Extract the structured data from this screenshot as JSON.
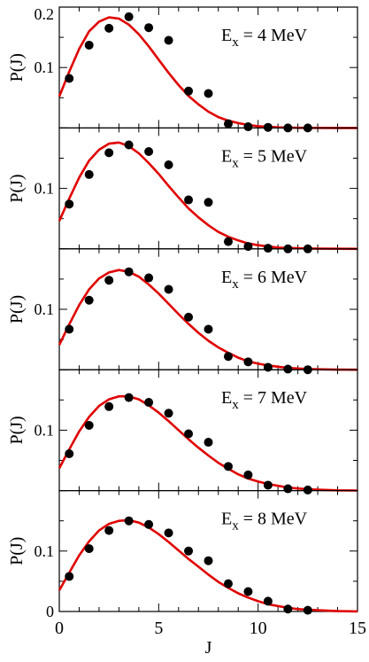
{
  "chart_data": [
    {
      "type": "scatter",
      "ylabel": "P(J)",
      "xlabel": "",
      "xlim": [
        0,
        15
      ],
      "ylim": [
        0,
        0.2
      ],
      "x_ticks": [
        0,
        5,
        10,
        15
      ],
      "y_ticks": [
        0.1,
        0.2
      ],
      "y_tick_labels": [
        "0.1",
        "0.2"
      ],
      "annotation": {
        "prefix": "E",
        "sub": "x",
        "suffix": " = 4 MeV"
      },
      "series": [
        {
          "style": "points",
          "x": [
            0.5,
            1.5,
            2.5,
            3.5,
            4.5,
            5.5,
            6.5,
            7.5,
            8.5,
            9.5,
            10.5,
            11.5,
            12.5
          ],
          "y": [
            0.082,
            0.137,
            0.165,
            0.184,
            0.166,
            0.145,
            0.061,
            0.057,
            0.007,
            0.002,
            0.001,
            0.0,
            0.0
          ]
        },
        {
          "style": "curve",
          "x": [
            0,
            0.5,
            1,
            1.5,
            2,
            2.5,
            3,
            3.5,
            4,
            4.5,
            5,
            5.5,
            6,
            6.5,
            7,
            7.5,
            8,
            8.5,
            9,
            9.5,
            10,
            10.5,
            11,
            11.5,
            12,
            12.5,
            13,
            14,
            15
          ],
          "y": [
            0.052,
            0.093,
            0.131,
            0.16,
            0.176,
            0.183,
            0.181,
            0.171,
            0.155,
            0.135,
            0.113,
            0.091,
            0.071,
            0.053,
            0.039,
            0.027,
            0.018,
            0.012,
            0.008,
            0.005,
            0.003,
            0.002,
            0.001,
            0.0006,
            0.0003,
            0.0002,
            0.0001,
            0.0,
            0.0
          ]
        }
      ]
    },
    {
      "type": "scatter",
      "ylabel": "P(J)",
      "xlabel": "",
      "xlim": [
        0,
        15
      ],
      "ylim": [
        0,
        0.2
      ],
      "x_ticks": [
        0,
        5,
        10,
        15
      ],
      "y_ticks": [
        0.1
      ],
      "y_tick_labels": [
        "0.1"
      ],
      "annotation": {
        "prefix": "E",
        "sub": "x",
        "suffix": " = 5 MeV"
      },
      "series": [
        {
          "style": "points",
          "x": [
            0.5,
            1.5,
            2.5,
            3.5,
            4.5,
            5.5,
            6.5,
            7.5,
            8.5,
            9.5,
            10.5,
            11.5,
            12.5
          ],
          "y": [
            0.074,
            0.123,
            0.159,
            0.172,
            0.161,
            0.139,
            0.081,
            0.077,
            0.012,
            0.004,
            0.001,
            0.0,
            0.0
          ]
        },
        {
          "style": "curve",
          "x": [
            0,
            0.5,
            1,
            1.5,
            2,
            2.5,
            3,
            3.5,
            4,
            4.5,
            5,
            5.5,
            6,
            6.5,
            7,
            7.5,
            8,
            8.5,
            9,
            9.5,
            10,
            10.5,
            11,
            11.5,
            12,
            12.5,
            13,
            14,
            15
          ],
          "y": [
            0.046,
            0.083,
            0.118,
            0.146,
            0.164,
            0.174,
            0.176,
            0.17,
            0.158,
            0.142,
            0.124,
            0.104,
            0.085,
            0.067,
            0.052,
            0.039,
            0.028,
            0.02,
            0.014,
            0.009,
            0.006,
            0.004,
            0.002,
            0.0015,
            0.001,
            0.0006,
            0.0003,
            0.0001,
            0.0
          ]
        }
      ]
    },
    {
      "type": "scatter",
      "ylabel": "P(J)",
      "xlabel": "",
      "xlim": [
        0,
        15
      ],
      "ylim": [
        0,
        0.2
      ],
      "x_ticks": [
        0,
        5,
        10,
        15
      ],
      "y_ticks": [
        0.1
      ],
      "y_tick_labels": [
        "0.1"
      ],
      "annotation": {
        "prefix": "E",
        "sub": "x",
        "suffix": " = 6 MeV"
      },
      "series": [
        {
          "style": "points",
          "x": [
            0.5,
            1.5,
            2.5,
            3.5,
            4.5,
            5.5,
            6.5,
            7.5,
            8.5,
            9.5,
            10.5,
            11.5,
            12.5
          ],
          "y": [
            0.067,
            0.115,
            0.148,
            0.162,
            0.152,
            0.133,
            0.087,
            0.067,
            0.022,
            0.013,
            0.004,
            0.001,
            0.0
          ]
        },
        {
          "style": "curve",
          "x": [
            0,
            0.5,
            1,
            1.5,
            2,
            2.5,
            3,
            3.5,
            4,
            4.5,
            5,
            5.5,
            6,
            6.5,
            7,
            7.5,
            8,
            8.5,
            9,
            9.5,
            10,
            10.5,
            11,
            11.5,
            12,
            12.5,
            13,
            14,
            15
          ],
          "y": [
            0.041,
            0.075,
            0.107,
            0.133,
            0.151,
            0.161,
            0.165,
            0.162,
            0.154,
            0.141,
            0.126,
            0.109,
            0.092,
            0.076,
            0.061,
            0.048,
            0.037,
            0.028,
            0.02,
            0.014,
            0.01,
            0.007,
            0.005,
            0.003,
            0.002,
            0.0012,
            0.0007,
            0.0002,
            0.0
          ]
        }
      ]
    },
    {
      "type": "scatter",
      "ylabel": "P(J)",
      "xlabel": "",
      "xlim": [
        0,
        15
      ],
      "ylim": [
        0,
        0.2
      ],
      "x_ticks": [
        0,
        5,
        10,
        15
      ],
      "y_ticks": [
        0.1
      ],
      "y_tick_labels": [
        "0.1"
      ],
      "annotation": {
        "prefix": "E",
        "sub": "x",
        "suffix": " = 7 MeV"
      },
      "series": [
        {
          "style": "points",
          "x": [
            0.5,
            1.5,
            2.5,
            3.5,
            4.5,
            5.5,
            6.5,
            7.5,
            8.5,
            9.5,
            10.5,
            11.5,
            12.5
          ],
          "y": [
            0.061,
            0.108,
            0.139,
            0.154,
            0.146,
            0.128,
            0.094,
            0.08,
            0.04,
            0.026,
            0.009,
            0.003,
            0.001
          ]
        },
        {
          "style": "curve",
          "x": [
            0,
            0.5,
            1,
            1.5,
            2,
            2.5,
            3,
            3.5,
            4,
            4.5,
            5,
            5.5,
            6,
            6.5,
            7,
            7.5,
            8,
            8.5,
            9,
            9.5,
            10,
            10.5,
            11,
            11.5,
            12,
            12.5,
            13,
            14,
            15
          ],
          "y": [
            0.037,
            0.068,
            0.098,
            0.122,
            0.14,
            0.151,
            0.156,
            0.156,
            0.151,
            0.141,
            0.129,
            0.115,
            0.1,
            0.085,
            0.071,
            0.058,
            0.046,
            0.036,
            0.027,
            0.02,
            0.015,
            0.011,
            0.008,
            0.005,
            0.0035,
            0.0023,
            0.0015,
            0.0005,
            0.0001
          ]
        }
      ]
    },
    {
      "type": "scatter",
      "ylabel": "P(J)",
      "xlabel": "J",
      "xlim": [
        0,
        15
      ],
      "ylim": [
        0,
        0.2
      ],
      "x_ticks": [
        0,
        5,
        10,
        15
      ],
      "x_tick_labels": [
        "0",
        "5",
        "10",
        "15"
      ],
      "y_ticks": [
        0,
        0.1
      ],
      "y_tick_labels": [
        "0",
        "0.1"
      ],
      "annotation": {
        "prefix": "E",
        "sub": "x",
        "suffix": " = 8 MeV"
      },
      "series": [
        {
          "style": "points",
          "x": [
            0.5,
            1.5,
            2.5,
            3.5,
            4.5,
            5.5,
            6.5,
            7.5,
            8.5,
            9.5,
            10.5,
            11.5,
            12.5
          ],
          "y": [
            0.058,
            0.104,
            0.134,
            0.15,
            0.144,
            0.13,
            0.1,
            0.084,
            0.046,
            0.033,
            0.017,
            0.004,
            0.002
          ]
        },
        {
          "style": "curve",
          "x": [
            0,
            0.5,
            1,
            1.5,
            2,
            2.5,
            3,
            3.5,
            4,
            4.5,
            5,
            5.5,
            6,
            6.5,
            7,
            7.5,
            8,
            8.5,
            9,
            9.5,
            10,
            10.5,
            11,
            11.5,
            12,
            12.5,
            13,
            14,
            15
          ],
          "y": [
            0.035,
            0.064,
            0.093,
            0.116,
            0.134,
            0.145,
            0.15,
            0.151,
            0.147,
            0.139,
            0.128,
            0.115,
            0.101,
            0.087,
            0.074,
            0.061,
            0.049,
            0.039,
            0.03,
            0.023,
            0.017,
            0.012,
            0.009,
            0.006,
            0.004,
            0.003,
            0.002,
            0.0006,
            0.0001
          ]
        }
      ]
    }
  ]
}
